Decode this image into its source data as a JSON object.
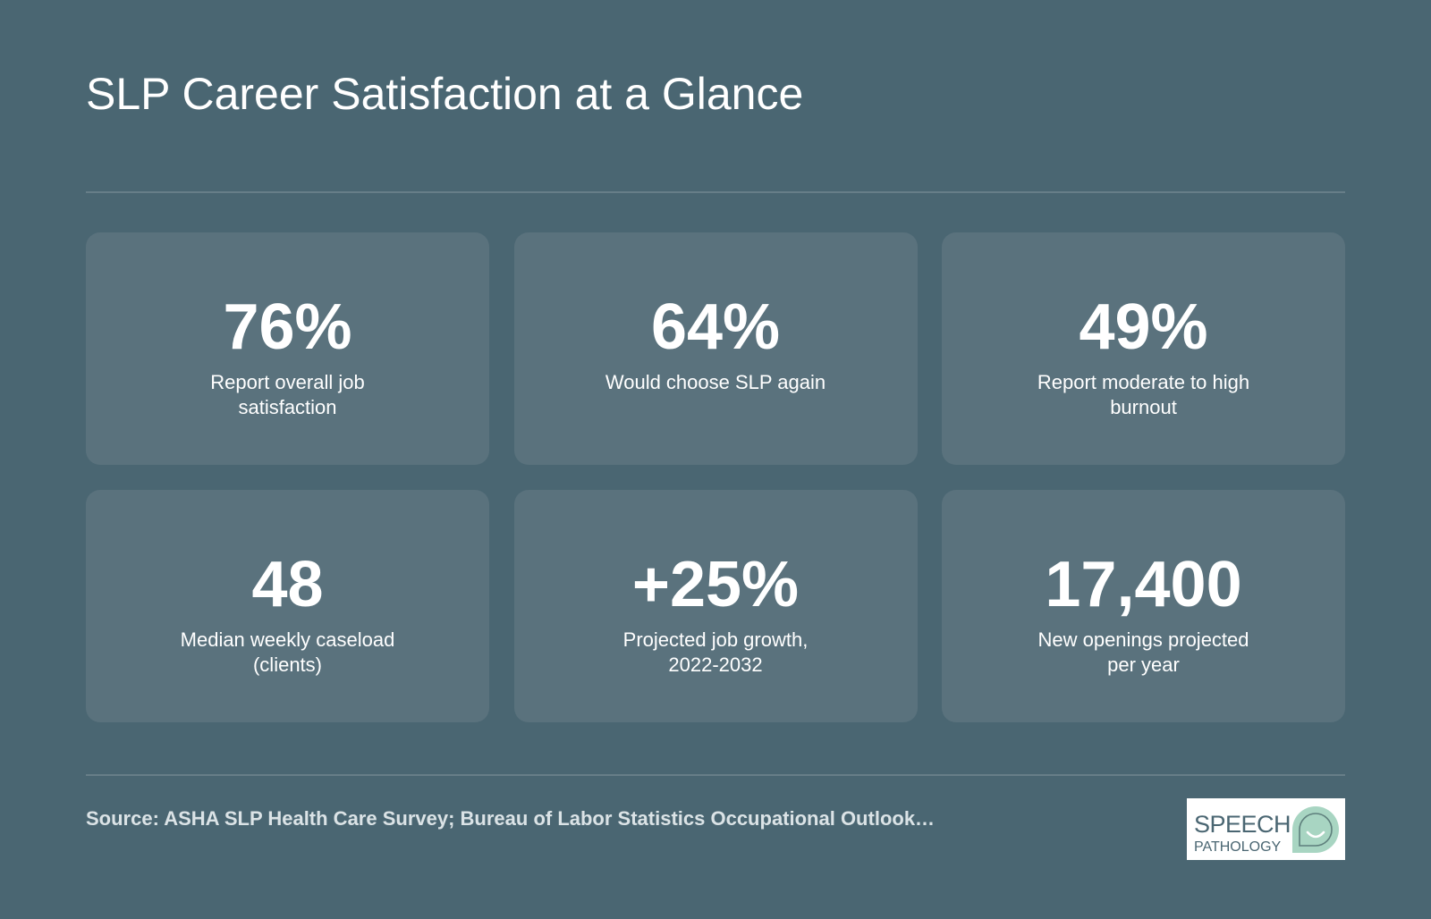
{
  "title": "SLP Career Satisfaction at a Glance",
  "stats": [
    {
      "value": "76%",
      "label": "Report overall job satisfaction"
    },
    {
      "value": "64%",
      "label": "Would choose SLP again"
    },
    {
      "value": "49%",
      "label": "Report moderate to high burnout"
    },
    {
      "value": "48",
      "label": "Median weekly caseload (clients)"
    },
    {
      "value": "+25%",
      "label": "Projected job growth, 2022-2032"
    },
    {
      "value": "17,400",
      "label": "New openings projected per year"
    }
  ],
  "source": "Source: ASHA SLP Health Care Survey; Bureau of Labor Statistics Occupational Outlook…",
  "logo": {
    "line1": "SPEECH",
    "line2": "PATHOLOGY",
    "mark_icon": "speech-bubble-smile-icon",
    "mark_color": "#a8d5c2"
  },
  "colors": {
    "background": "#4a6672",
    "card": "#5a727d",
    "text": "#ffffff"
  }
}
